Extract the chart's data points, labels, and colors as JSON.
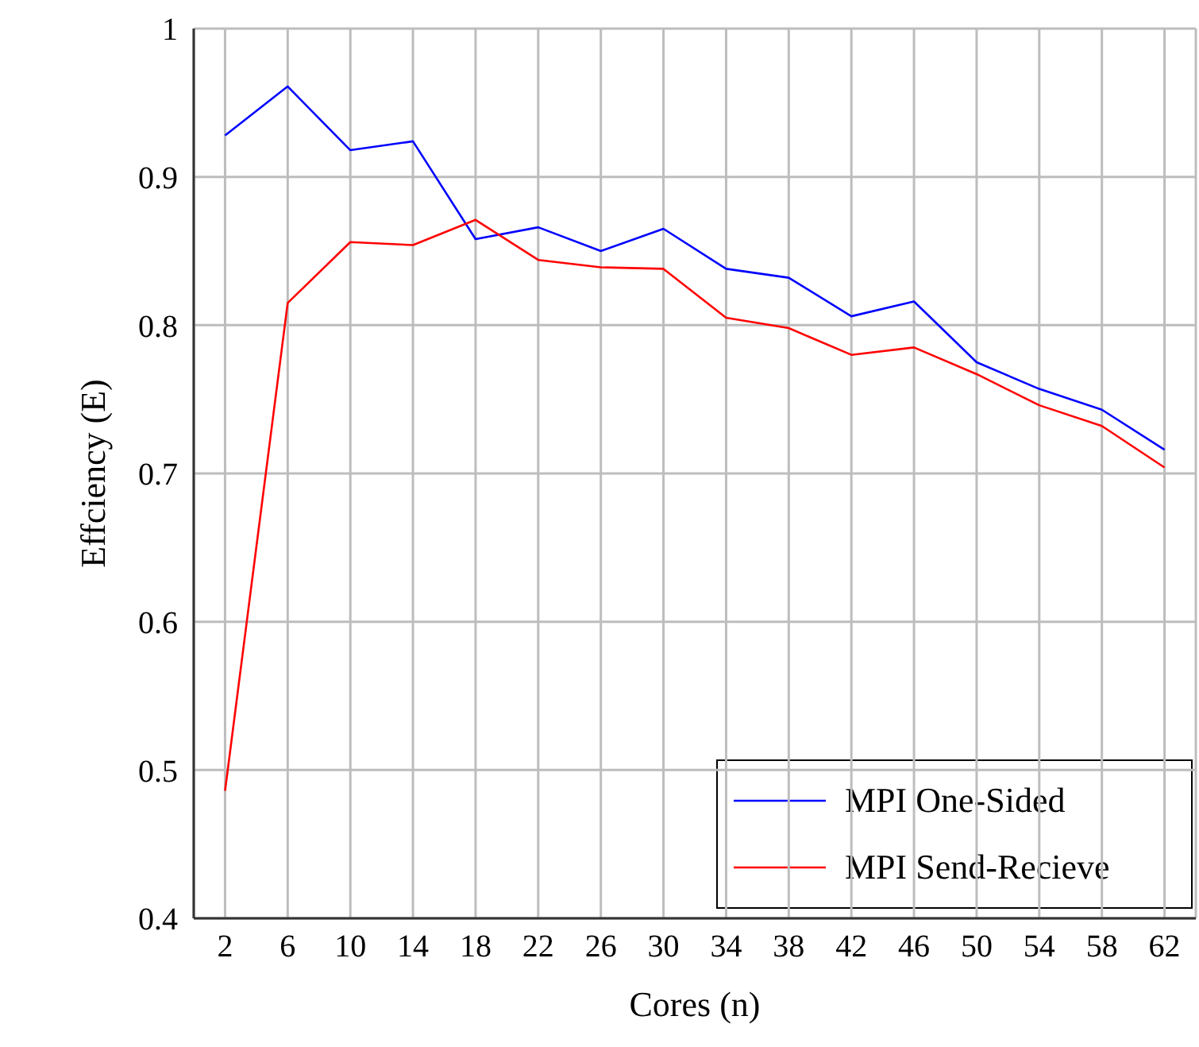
{
  "chart_data": {
    "type": "line",
    "xlabel": "Cores (n)",
    "ylabel": "Effciency (E)",
    "x": [
      2,
      6,
      10,
      14,
      18,
      22,
      26,
      30,
      34,
      38,
      42,
      46,
      50,
      54,
      58,
      62
    ],
    "series": [
      {
        "name": "MPI One-Sided",
        "color": "#0000ff",
        "values": [
          0.928,
          0.961,
          0.918,
          0.924,
          0.858,
          0.866,
          0.85,
          0.865,
          0.838,
          0.832,
          0.806,
          0.816,
          0.775,
          0.757,
          0.743,
          0.716
        ]
      },
      {
        "name": "MPI Send-Recieve",
        "color": "#ff0000",
        "values": [
          0.486,
          0.815,
          0.856,
          0.854,
          0.871,
          0.844,
          0.839,
          0.838,
          0.805,
          0.798,
          0.78,
          0.785,
          0.767,
          0.746,
          0.732,
          0.704
        ]
      }
    ],
    "xlim": [
      0,
      64
    ],
    "xticks": [
      2,
      6,
      10,
      14,
      18,
      22,
      26,
      30,
      34,
      38,
      42,
      46,
      50,
      54,
      58,
      62
    ],
    "ylim": [
      0.4,
      1
    ],
    "yticks": [
      0.4,
      0.5,
      0.6,
      0.7,
      0.8,
      0.9,
      1
    ],
    "grid": true,
    "legend": "bottom right",
    "marker": "none",
    "line_style": "solid"
  }
}
